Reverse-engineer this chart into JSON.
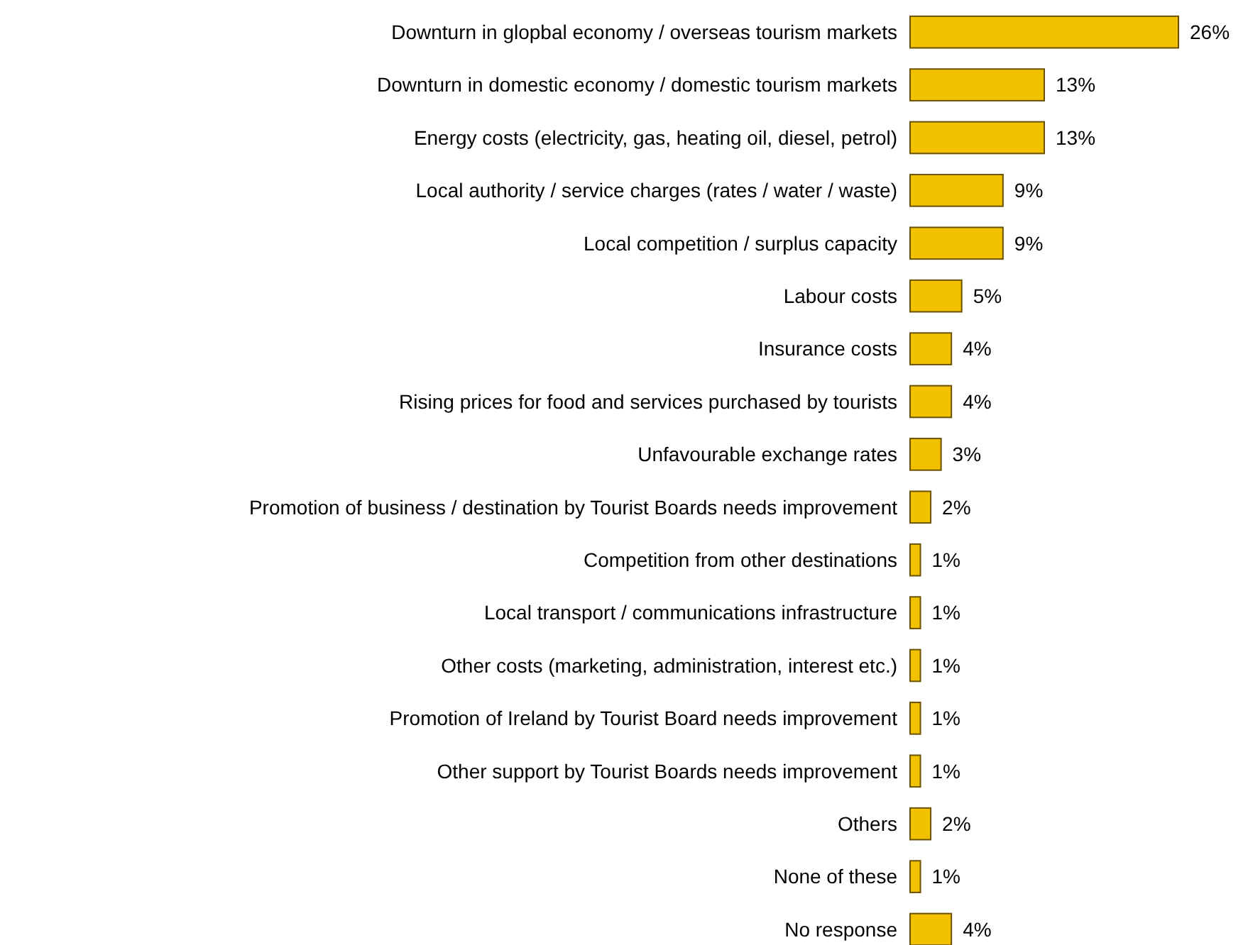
{
  "chart_data": {
    "type": "bar",
    "orientation": "horizontal",
    "color": "#f2c200",
    "categories": [
      "Downturn in glopbal economy / overseas tourism markets",
      "Downturn in domestic economy / domestic tourism markets",
      "Energy costs (electricity, gas, heating oil, diesel, petrol)",
      "Local authority / service charges (rates / water / waste)",
      "Local competition / surplus capacity",
      "Labour costs",
      "Insurance costs",
      "Rising prices for food and services purchased by tourists",
      "Unfavourable exchange rates",
      "Promotion of business / destination by Tourist Boards needs improvement",
      "Competition from other destinations",
      "Local transport / communications infrastructure",
      "Other costs (marketing, administration, interest etc.)",
      "Promotion of Ireland by Tourist Board needs improvement",
      "Other support by Tourist Boards needs improvement",
      "Others",
      "None of these",
      "No response"
    ],
    "values": [
      26,
      13,
      13,
      9,
      9,
      5,
      4,
      4,
      3,
      2,
      1,
      1,
      1,
      1,
      1,
      2,
      1,
      4
    ],
    "value_labels": [
      "26%",
      "13%",
      "13%",
      "9%",
      "9%",
      "5%",
      "4%",
      "4%",
      "3%",
      "2%",
      "1%",
      "1%",
      "1%",
      "1%",
      "1%",
      "2%",
      "1%",
      "4%"
    ]
  }
}
